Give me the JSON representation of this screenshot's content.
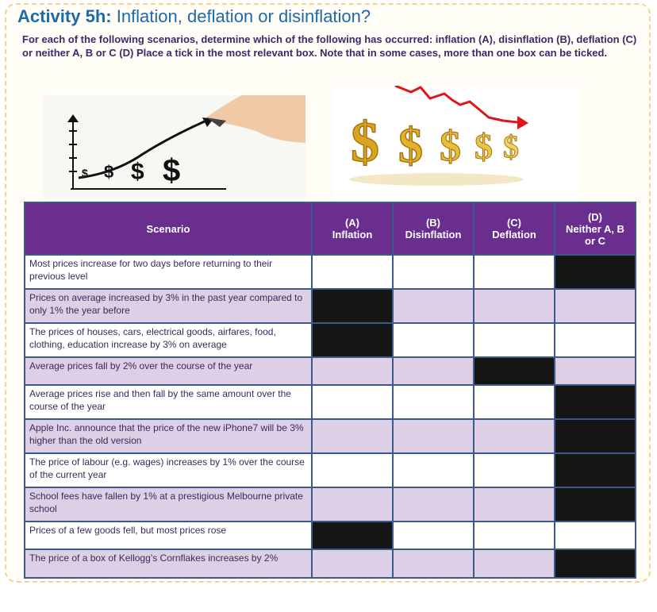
{
  "title": {
    "bold": "Activity 5h:",
    "rest": " Inflation, deflation or disinflation?"
  },
  "intro": "For each of the following scenarios, determine which of the following has occurred: inflation (A), disinflation (B), deflation (C) or neither A, B or C (D) Place a tick in the most relevant box. Note that in some cases, more than one box can be ticked.",
  "image_rising": {
    "symbols": [
      "$",
      "$",
      "$",
      "$"
    ]
  },
  "image_falling": {
    "symbols": [
      "$",
      "$",
      "$",
      "$",
      "$"
    ]
  },
  "table": {
    "headers": [
      {
        "lines": [
          "Scenario"
        ]
      },
      {
        "lines": [
          "(A)",
          "Inflation"
        ]
      },
      {
        "lines": [
          "(B)",
          "Disinflation"
        ]
      },
      {
        "lines": [
          "(C)",
          "Deflation"
        ]
      },
      {
        "lines": [
          "(D)",
          "Neither A, B",
          "or C"
        ]
      }
    ],
    "rows": [
      {
        "scenario": "Most prices increase for two days before returning to their previous level",
        "marks": [
          false,
          false,
          false,
          true
        ]
      },
      {
        "scenario": "Prices on average increased by 3% in the past year compared to only 1% the year before",
        "marks": [
          true,
          false,
          false,
          false
        ]
      },
      {
        "scenario": "The prices of houses, cars, electrical goods, airfares, food, clothing, education increase by 3% on average",
        "marks": [
          true,
          false,
          false,
          false
        ]
      },
      {
        "scenario": "Average prices fall by 2% over the course of the year",
        "marks": [
          false,
          false,
          true,
          false
        ]
      },
      {
        "scenario": "Average prices rise and then fall by the same amount over the course of the year",
        "marks": [
          false,
          false,
          false,
          true
        ]
      },
      {
        "scenario": "Apple Inc. announce that the price of the new iPhone7 will be 3% higher than the old version",
        "marks": [
          false,
          false,
          false,
          true
        ]
      },
      {
        "scenario": "The price of labour (e.g. wages) increases by 1% over the course of the current year",
        "marks": [
          false,
          false,
          false,
          true
        ]
      },
      {
        "scenario": "School fees have fallen by 1% at a prestigious Melbourne private school",
        "marks": [
          false,
          false,
          false,
          true
        ]
      },
      {
        "scenario": "Prices of a few goods fell, but most prices rose",
        "marks": [
          true,
          false,
          false,
          false
        ]
      },
      {
        "scenario": "The price of a box of Kellogg’s Cornflakes increases by 2%",
        "marks": [
          false,
          false,
          false,
          true
        ]
      }
    ]
  }
}
